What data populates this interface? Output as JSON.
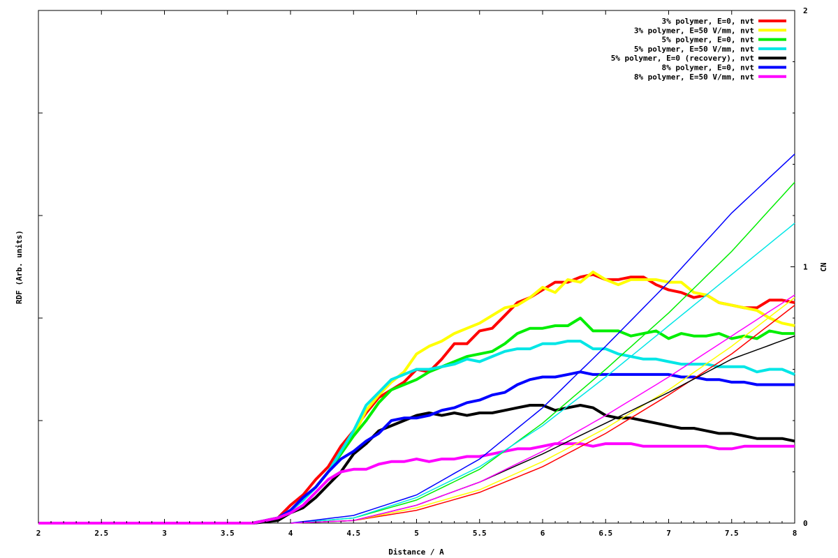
{
  "chart_data": {
    "type": "line",
    "title": "",
    "xlabel": "Distance / A",
    "ylabel": "RDF (Arb. units)",
    "y2label": "CN",
    "xlim": [
      2,
      8
    ],
    "y2lim": [
      0,
      2
    ],
    "x_ticks": [
      "2",
      "2.5",
      "3",
      "3.5",
      "4",
      "4.5",
      "5",
      "5.5",
      "6",
      "6.5",
      "7",
      "7.5",
      "8"
    ],
    "y2_ticks": [
      "0",
      "1",
      "2"
    ],
    "legend_position": "top-right",
    "rdf_series": [
      {
        "name": "3% polymer, E=0, nvt",
        "color": "#ff0000",
        "x": [
          2.0,
          3.7,
          3.9,
          4.0,
          4.1,
          4.2,
          4.3,
          4.4,
          4.5,
          4.6,
          4.7,
          4.8,
          4.9,
          5.0,
          5.1,
          5.2,
          5.3,
          5.4,
          5.5,
          5.6,
          5.7,
          5.8,
          5.9,
          6.0,
          6.1,
          6.2,
          6.3,
          6.4,
          6.5,
          6.6,
          6.7,
          6.8,
          6.9,
          7.0,
          7.1,
          7.2,
          7.3,
          7.4,
          7.5,
          7.6,
          7.7,
          7.8,
          7.9,
          8.0
        ],
        "y": [
          0.0,
          0.0,
          0.02,
          0.07,
          0.11,
          0.17,
          0.22,
          0.3,
          0.36,
          0.43,
          0.49,
          0.52,
          0.55,
          0.6,
          0.59,
          0.64,
          0.7,
          0.7,
          0.75,
          0.76,
          0.81,
          0.86,
          0.88,
          0.91,
          0.94,
          0.94,
          0.96,
          0.97,
          0.95,
          0.95,
          0.96,
          0.96,
          0.93,
          0.91,
          0.9,
          0.88,
          0.89,
          0.86,
          0.85,
          0.84,
          0.84,
          0.87,
          0.87,
          0.86
        ]
      },
      {
        "name": "3% polymer, E=50 V/mm, nvt",
        "color": "#ffff00",
        "x": [
          2.0,
          3.7,
          3.9,
          4.0,
          4.1,
          4.2,
          4.3,
          4.4,
          4.5,
          4.6,
          4.7,
          4.8,
          4.9,
          5.0,
          5.1,
          5.2,
          5.3,
          5.4,
          5.5,
          5.6,
          5.7,
          5.8,
          5.9,
          6.0,
          6.1,
          6.2,
          6.3,
          6.4,
          6.5,
          6.6,
          6.7,
          6.8,
          6.9,
          7.0,
          7.1,
          7.2,
          7.3,
          7.4,
          7.5,
          7.6,
          7.7,
          7.8,
          7.9,
          8.0
        ],
        "y": [
          0.0,
          0.0,
          0.02,
          0.05,
          0.09,
          0.14,
          0.2,
          0.28,
          0.34,
          0.44,
          0.5,
          0.55,
          0.59,
          0.66,
          0.69,
          0.71,
          0.74,
          0.76,
          0.78,
          0.81,
          0.84,
          0.85,
          0.88,
          0.92,
          0.9,
          0.95,
          0.94,
          0.98,
          0.95,
          0.93,
          0.95,
          0.95,
          0.95,
          0.94,
          0.94,
          0.9,
          0.89,
          0.86,
          0.85,
          0.84,
          0.83,
          0.8,
          0.78,
          0.77
        ]
      },
      {
        "name": "5% polymer, E=0, nvt",
        "color": "#00ee00",
        "x": [
          2.0,
          3.7,
          3.9,
          4.0,
          4.1,
          4.2,
          4.3,
          4.4,
          4.5,
          4.6,
          4.7,
          4.8,
          4.9,
          5.0,
          5.1,
          5.2,
          5.3,
          5.4,
          5.5,
          5.6,
          5.7,
          5.8,
          5.9,
          6.0,
          6.1,
          6.2,
          6.3,
          6.4,
          6.5,
          6.6,
          6.7,
          6.8,
          6.9,
          7.0,
          7.1,
          7.2,
          7.3,
          7.4,
          7.5,
          7.6,
          7.7,
          7.8,
          7.9,
          8.0
        ],
        "y": [
          0.0,
          0.0,
          0.02,
          0.05,
          0.09,
          0.14,
          0.2,
          0.27,
          0.34,
          0.4,
          0.47,
          0.52,
          0.54,
          0.56,
          0.59,
          0.61,
          0.63,
          0.65,
          0.66,
          0.67,
          0.7,
          0.74,
          0.76,
          0.76,
          0.77,
          0.77,
          0.8,
          0.75,
          0.75,
          0.75,
          0.73,
          0.74,
          0.75,
          0.72,
          0.74,
          0.73,
          0.73,
          0.74,
          0.72,
          0.73,
          0.72,
          0.75,
          0.74,
          0.74
        ]
      },
      {
        "name": "5% polymer, E=50 V/mm, nvt",
        "color": "#00e6e6",
        "x": [
          2.0,
          3.7,
          3.9,
          4.0,
          4.1,
          4.2,
          4.3,
          4.4,
          4.5,
          4.6,
          4.7,
          4.8,
          4.9,
          5.0,
          5.1,
          5.2,
          5.3,
          5.4,
          5.5,
          5.6,
          5.7,
          5.8,
          5.9,
          6.0,
          6.1,
          6.2,
          6.3,
          6.4,
          6.5,
          6.6,
          6.7,
          6.8,
          6.9,
          7.0,
          7.1,
          7.2,
          7.3,
          7.4,
          7.5,
          7.6,
          7.7,
          7.8,
          7.9,
          8.0
        ],
        "y": [
          0.0,
          0.0,
          0.02,
          0.05,
          0.09,
          0.14,
          0.2,
          0.28,
          0.36,
          0.46,
          0.51,
          0.56,
          0.58,
          0.6,
          0.6,
          0.61,
          0.62,
          0.64,
          0.63,
          0.65,
          0.67,
          0.68,
          0.68,
          0.7,
          0.7,
          0.71,
          0.71,
          0.68,
          0.68,
          0.66,
          0.65,
          0.64,
          0.64,
          0.63,
          0.62,
          0.62,
          0.62,
          0.61,
          0.61,
          0.61,
          0.59,
          0.6,
          0.6,
          0.58
        ]
      },
      {
        "name": "5% polymer, E=0 (recovery), nvt",
        "color": "#000000",
        "x": [
          2.0,
          3.7,
          3.9,
          4.0,
          4.1,
          4.2,
          4.3,
          4.4,
          4.5,
          4.6,
          4.7,
          4.8,
          4.9,
          5.0,
          5.1,
          5.2,
          5.3,
          5.4,
          5.5,
          5.6,
          5.7,
          5.8,
          5.9,
          6.0,
          6.1,
          6.2,
          6.3,
          6.4,
          6.5,
          6.6,
          6.7,
          6.8,
          6.9,
          7.0,
          7.1,
          7.2,
          7.3,
          7.4,
          7.5,
          7.6,
          7.7,
          7.8,
          7.9,
          8.0
        ],
        "y": [
          0.0,
          0.0,
          0.01,
          0.04,
          0.06,
          0.1,
          0.15,
          0.2,
          0.27,
          0.31,
          0.36,
          0.38,
          0.4,
          0.42,
          0.43,
          0.42,
          0.43,
          0.42,
          0.43,
          0.43,
          0.44,
          0.45,
          0.46,
          0.46,
          0.44,
          0.45,
          0.46,
          0.45,
          0.42,
          0.41,
          0.41,
          0.4,
          0.39,
          0.38,
          0.37,
          0.37,
          0.36,
          0.35,
          0.35,
          0.34,
          0.33,
          0.33,
          0.33,
          0.32
        ]
      },
      {
        "name": "8% polymer, E=0, nvt",
        "color": "#0000ff",
        "x": [
          2.0,
          3.7,
          3.9,
          4.0,
          4.1,
          4.2,
          4.3,
          4.4,
          4.5,
          4.6,
          4.7,
          4.8,
          4.9,
          5.0,
          5.1,
          5.2,
          5.3,
          5.4,
          5.5,
          5.6,
          5.7,
          5.8,
          5.9,
          6.0,
          6.1,
          6.2,
          6.3,
          6.4,
          6.5,
          6.6,
          6.7,
          6.8,
          6.9,
          7.0,
          7.1,
          7.2,
          7.3,
          7.4,
          7.5,
          7.6,
          7.7,
          7.8,
          7.9,
          8.0
        ],
        "y": [
          0.0,
          0.0,
          0.02,
          0.05,
          0.1,
          0.14,
          0.2,
          0.25,
          0.28,
          0.32,
          0.35,
          0.4,
          0.41,
          0.41,
          0.42,
          0.44,
          0.45,
          0.47,
          0.48,
          0.5,
          0.51,
          0.54,
          0.56,
          0.57,
          0.57,
          0.58,
          0.59,
          0.58,
          0.58,
          0.58,
          0.58,
          0.58,
          0.58,
          0.58,
          0.57,
          0.57,
          0.56,
          0.56,
          0.55,
          0.55,
          0.54,
          0.54,
          0.54,
          0.54
        ]
      },
      {
        "name": "8% polymer, E=50 V/mm, nvt",
        "color": "#ff00ff",
        "x": [
          2.0,
          3.7,
          3.9,
          4.0,
          4.1,
          4.2,
          4.3,
          4.4,
          4.5,
          4.6,
          4.7,
          4.8,
          4.9,
          5.0,
          5.1,
          5.2,
          5.3,
          5.4,
          5.5,
          5.6,
          5.7,
          5.8,
          5.9,
          6.0,
          6.1,
          6.2,
          6.3,
          6.4,
          6.5,
          6.6,
          6.7,
          6.8,
          6.9,
          7.0,
          7.1,
          7.2,
          7.3,
          7.4,
          7.5,
          7.6,
          7.7,
          7.8,
          7.9,
          8.0
        ],
        "y": [
          0.0,
          0.0,
          0.02,
          0.04,
          0.07,
          0.12,
          0.17,
          0.2,
          0.21,
          0.21,
          0.23,
          0.24,
          0.24,
          0.25,
          0.24,
          0.25,
          0.25,
          0.26,
          0.26,
          0.27,
          0.28,
          0.29,
          0.29,
          0.3,
          0.31,
          0.31,
          0.31,
          0.3,
          0.31,
          0.31,
          0.31,
          0.3,
          0.3,
          0.3,
          0.3,
          0.3,
          0.3,
          0.29,
          0.29,
          0.3,
          0.3,
          0.3,
          0.3,
          0.3
        ]
      }
    ],
    "cn_series": [
      {
        "name": "3% polymer, E=0, nvt",
        "color": "#ff0000",
        "x": [
          4.0,
          4.5,
          5.0,
          5.5,
          6.0,
          6.5,
          7.0,
          7.5,
          8.0
        ],
        "y": [
          0.0,
          0.01,
          0.05,
          0.12,
          0.22,
          0.35,
          0.5,
          0.66,
          0.85
        ]
      },
      {
        "name": "3% polymer, E=50 V/mm, nvt",
        "color": "#ffff00",
        "x": [
          4.0,
          4.5,
          5.0,
          5.5,
          6.0,
          6.5,
          7.0,
          7.5,
          8.0
        ],
        "y": [
          0.0,
          0.01,
          0.06,
          0.13,
          0.24,
          0.37,
          0.52,
          0.69,
          0.88
        ]
      },
      {
        "name": "5% polymer, E=0, nvt",
        "color": "#00ee00",
        "x": [
          4.0,
          4.5,
          5.0,
          5.5,
          6.0,
          6.5,
          7.0,
          7.5,
          8.0
        ],
        "y": [
          0.0,
          0.02,
          0.09,
          0.21,
          0.39,
          0.6,
          0.82,
          1.06,
          1.33
        ]
      },
      {
        "name": "5% polymer, E=50 V/mm, nvt",
        "color": "#00e6e6",
        "x": [
          4.0,
          4.5,
          5.0,
          5.5,
          6.0,
          6.5,
          7.0,
          7.5,
          8.0
        ],
        "y": [
          0.0,
          0.02,
          0.1,
          0.22,
          0.38,
          0.57,
          0.77,
          0.97,
          1.17
        ]
      },
      {
        "name": "5% polymer, E=0 (recovery), nvt",
        "color": "#000000",
        "x": [
          4.0,
          4.5,
          5.0,
          5.5,
          6.0,
          6.5,
          7.0,
          7.5,
          8.0
        ],
        "y": [
          0.0,
          0.01,
          0.07,
          0.16,
          0.27,
          0.39,
          0.51,
          0.64,
          0.73
        ]
      },
      {
        "name": "8% polymer, E=0, nvt",
        "color": "#0000ff",
        "x": [
          4.0,
          4.5,
          5.0,
          5.5,
          6.0,
          6.5,
          7.0,
          7.5,
          8.0
        ],
        "y": [
          0.0,
          0.03,
          0.11,
          0.25,
          0.45,
          0.69,
          0.94,
          1.21,
          1.44
        ]
      },
      {
        "name": "8% polymer, E=50 V/mm, nvt",
        "color": "#ff00ff",
        "x": [
          4.0,
          4.5,
          5.0,
          5.5,
          6.0,
          6.5,
          7.0,
          7.5,
          8.0
        ],
        "y": [
          0.0,
          0.01,
          0.07,
          0.16,
          0.28,
          0.42,
          0.57,
          0.73,
          0.89
        ]
      }
    ]
  }
}
